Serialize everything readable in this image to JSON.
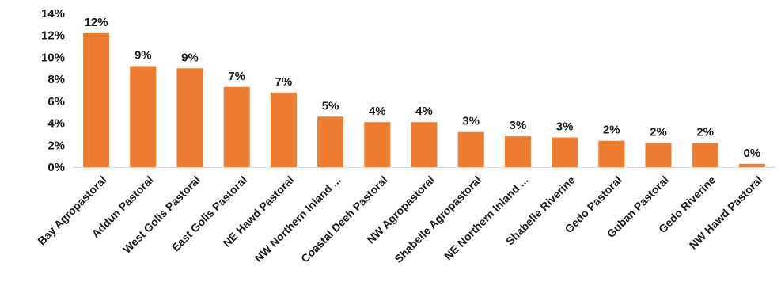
{
  "chart_data": {
    "type": "bar",
    "title": "",
    "xlabel": "",
    "ylabel": "",
    "ylim": [
      0,
      14
    ],
    "yticks": [
      "0%",
      "2%",
      "4%",
      "6%",
      "8%",
      "10%",
      "12%",
      "14%"
    ],
    "ytick_values": [
      0,
      2,
      4,
      6,
      8,
      10,
      12,
      14
    ],
    "grid": false,
    "legend": "none",
    "bar_color": "#ED7D31",
    "categories": [
      "Bay Agropastoral",
      "Addun Pastoral",
      "West Golis Pastoral",
      "East Golis Pastoral",
      "NE Hawd Pastoral",
      "NW Northern Inland ...",
      "Coastal Deeh Pastoral",
      "NW Agropastoral",
      "Shabelle Agropastoral",
      "NE Northern Inland ...",
      "Shabelle Riverine",
      "Gedo Pastoral",
      "Guban Pastoral",
      "Gedo Riverine",
      "NW Hawd Pastoral"
    ],
    "values": [
      12.2,
      9.2,
      9.0,
      7.3,
      6.8,
      4.6,
      4.1,
      4.1,
      3.2,
      2.8,
      2.7,
      2.4,
      2.2,
      2.2,
      0.3
    ],
    "data_labels": [
      "12%",
      "9%",
      "9%",
      "7%",
      "7%",
      "5%",
      "4%",
      "4%",
      "3%",
      "3%",
      "3%",
      "2%",
      "2%",
      "2%",
      "0%"
    ]
  }
}
